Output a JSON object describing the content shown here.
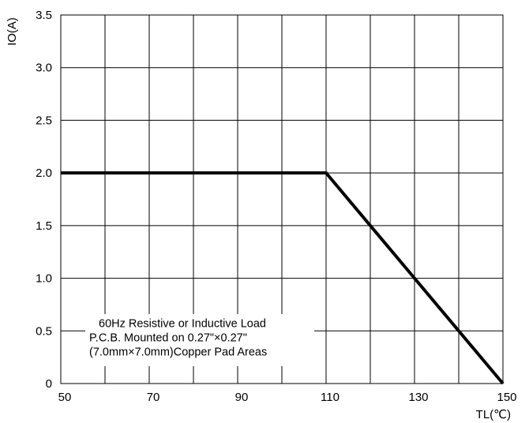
{
  "chart_data": {
    "type": "line",
    "title": "",
    "xlabel": "TL(℃)",
    "ylabel": "IO(A)",
    "xlim": [
      50,
      150
    ],
    "ylim": [
      0,
      3.5
    ],
    "x_ticks": [
      50,
      70,
      90,
      110,
      130,
      150
    ],
    "x_tick_labels": [
      "50",
      "70",
      "90",
      "110",
      "130",
      "150"
    ],
    "x_grid_step": 10,
    "y_ticks": [
      0,
      0.5,
      1.0,
      1.5,
      2.0,
      2.5,
      3.0,
      3.5
    ],
    "y_tick_labels": [
      "0",
      "0.5",
      "1.0",
      "1.5",
      "2.0",
      "2.5",
      "3.0",
      "3.5"
    ],
    "grid": true,
    "series": [
      {
        "x": [
          50,
          110,
          150
        ],
        "y": [
          2.0,
          2.0,
          0
        ],
        "color": "#000000"
      }
    ],
    "annotations": [
      "60Hz Resistive or Inductive Load",
      "P.C.B. Mounted on 0.27\"×0.27\"",
      "(7.0mm×7.0mm)Copper Pad Areas"
    ]
  }
}
